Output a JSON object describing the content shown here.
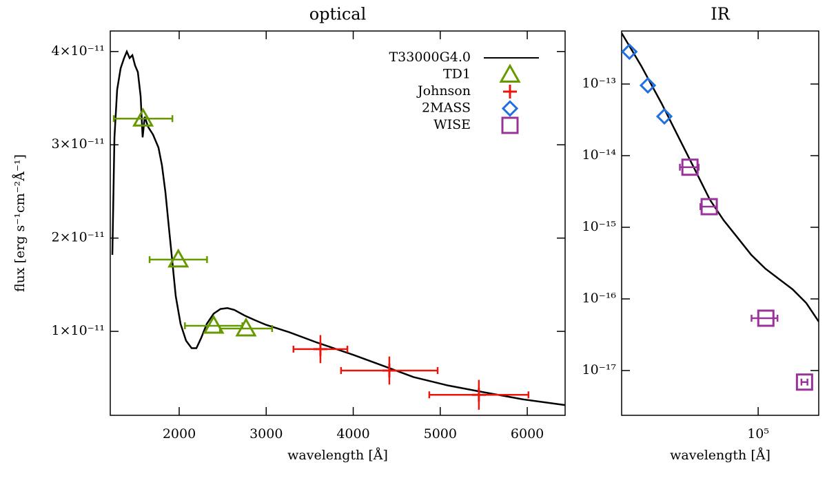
{
  "chart_data": [
    {
      "type": "line",
      "title": "optical",
      "xlabel": "wavelength [Å]",
      "ylabel": "flux [erg s⁻¹cm⁻²Å⁻¹]",
      "xlim": [
        1208,
        6435
      ],
      "ylim": [
        1e-12,
        4.22e-11
      ],
      "xticks": [
        2000,
        3000,
        4000,
        5000,
        6000
      ],
      "yticks": [
        {
          "value": 1e-11,
          "label": "1×10⁻¹¹"
        },
        {
          "value": 2e-11,
          "label": "2×10⁻¹¹"
        },
        {
          "value": 3e-11,
          "label": "3×10⁻¹¹"
        },
        {
          "value": 4e-11,
          "label": "4×10⁻¹¹"
        }
      ],
      "legend": "upper right",
      "series": [
        {
          "name": "T33000G4.0",
          "color": "#000000",
          "marker": "line",
          "x": [
            1232,
            1256,
            1287,
            1327,
            1367,
            1398,
            1430,
            1462,
            1493,
            1525,
            1557,
            1580,
            1604,
            1644,
            1699,
            1762,
            1802,
            1842,
            1881,
            1921,
            1960,
            2016,
            2079,
            2143,
            2198,
            2253,
            2317,
            2396,
            2475,
            2554,
            2633,
            2752,
            2871,
            2998,
            3267,
            3584,
            3995,
            4375,
            4692,
            5088,
            5484,
            5959,
            6434
          ],
          "values": [
            1.82e-11,
            3.08e-11,
            3.59e-11,
            3.82e-11,
            3.93e-11,
            4e-11,
            3.93e-11,
            3.96e-11,
            3.85e-11,
            3.78e-11,
            3.52e-11,
            3.08e-11,
            3.3e-11,
            3.19e-11,
            3.11e-11,
            2.97e-11,
            2.78e-11,
            2.49e-11,
            2.12e-11,
            1.75e-11,
            1.38e-11,
            1.08e-11,
            9e-12,
            8.2e-12,
            8.2e-12,
            9.3e-12,
            1.08e-11,
            1.19e-11,
            1.24e-11,
            1.25e-11,
            1.23e-11,
            1.17e-11,
            1.12e-11,
            1.07e-11,
            9.9e-12,
            8.8e-12,
            7.5e-12,
            6.2e-12,
            5.1e-12,
            4.2e-12,
            3.5e-12,
            2.7e-12,
            2.1e-12
          ]
        },
        {
          "name": "TD1",
          "color": "#669900",
          "marker": "triangle",
          "x": [
            1585,
            1990,
            2396,
            2768
          ],
          "values": [
            3.28e-11,
            1.77e-11,
            1.06e-11,
            1.03e-11
          ],
          "xerr": [
            337,
            330,
            330,
            300
          ]
        },
        {
          "name": "Johnson",
          "color": "#e8160c",
          "marker": "plus",
          "x": [
            3623,
            4415,
            5444
          ],
          "values": [
            8.1e-12,
            5.8e-12,
            3.2e-12
          ],
          "xerr": [
            310,
            555,
            570
          ],
          "yerr": [
            1.5e-12,
            1.5e-12,
            1.6e-12
          ]
        }
      ]
    },
    {
      "type": "line",
      "title": "IR",
      "xlabel": "wavelength [Å]",
      "xlog": true,
      "ylog": true,
      "xlim": [
        11400,
        262000
      ],
      "ylim": [
        2.37e-18,
        5.5e-13
      ],
      "xticks": [
        {
          "value": 100000,
          "label": "10⁵"
        }
      ],
      "yticks": [
        {
          "value": 1e-17,
          "label": "10⁻¹⁷"
        },
        {
          "value": 1e-16,
          "label": "10⁻¹⁶"
        },
        {
          "value": 1e-15,
          "label": "10⁻¹⁵"
        },
        {
          "value": 1e-14,
          "label": "10⁻¹⁴"
        },
        {
          "value": 1e-13,
          "label": "10⁻¹³"
        }
      ],
      "series": [
        {
          "color": "#000000",
          "marker": "line",
          "x": [
            11400,
            15500,
            21500,
            29900,
            37300,
            46400,
            57800,
            72000,
            89600,
            112000,
            139000,
            173000,
            215000,
            262000
          ],
          "values": [
            5.15e-13,
            1.82e-13,
            5.38e-14,
            1.43e-14,
            5.88e-15,
            2.43e-15,
            1.25e-15,
            7.18e-16,
            4.12e-16,
            2.65e-16,
            1.9e-16,
            1.36e-16,
            8.75e-17,
            4.82e-17
          ]
        },
        {
          "name": "2MASS",
          "color": "#1f6fe0",
          "marker": "diamond",
          "x": [
            12900,
            17300,
            22500
          ],
          "values": [
            2.83e-13,
            9.57e-14,
            3.53e-14
          ]
        },
        {
          "name": "WISE",
          "color": "#993399",
          "marker": "square",
          "x": [
            33800,
            45900,
            113000,
            209000
          ],
          "values": [
            6.9e-15,
            1.94e-15,
            5.38e-17,
            6.9e-18
          ],
          "xerr": [
            5000,
            6000,
            23000,
            10000
          ]
        }
      ]
    }
  ]
}
